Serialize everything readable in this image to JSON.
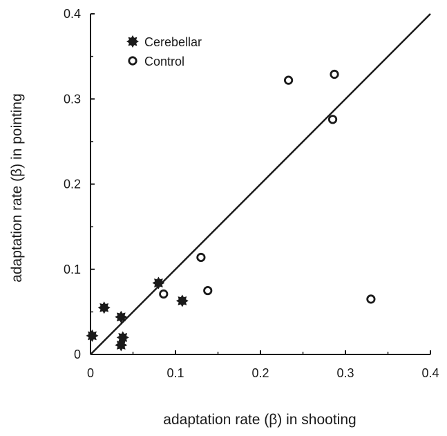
{
  "chart_data": {
    "type": "scatter",
    "title": "",
    "xlabel": "adaptation rate (β) in shooting",
    "ylabel": "adaptation rate  (β) in pointing",
    "xlim": [
      0,
      0.4
    ],
    "ylim": [
      0,
      0.4
    ],
    "x_ticks": [
      "0",
      "0.1",
      "0.2",
      "0.3",
      "0.4"
    ],
    "y_ticks": [
      "0",
      "0.1",
      "0.2",
      "0.3",
      "0.4"
    ],
    "grid": false,
    "legend_position": "top-left",
    "reference_line": {
      "type": "identity",
      "from": [
        0,
        0
      ],
      "to": [
        0.4,
        0.4
      ]
    },
    "series": [
      {
        "name": "Cerebellar",
        "marker": "filled-star",
        "color": "#1a1a1a",
        "points": [
          {
            "x": 0.002,
            "y": 0.022
          },
          {
            "x": 0.016,
            "y": 0.055
          },
          {
            "x": 0.036,
            "y": 0.044
          },
          {
            "x": 0.038,
            "y": 0.02
          },
          {
            "x": 0.036,
            "y": 0.011
          },
          {
            "x": 0.08,
            "y": 0.084
          },
          {
            "x": 0.108,
            "y": 0.063
          }
        ]
      },
      {
        "name": "Control",
        "marker": "open-circle",
        "color": "#1a1a1a",
        "points": [
          {
            "x": 0.086,
            "y": 0.071
          },
          {
            "x": 0.13,
            "y": 0.114
          },
          {
            "x": 0.138,
            "y": 0.075
          },
          {
            "x": 0.233,
            "y": 0.322
          },
          {
            "x": 0.287,
            "y": 0.329
          },
          {
            "x": 0.285,
            "y": 0.276
          },
          {
            "x": 0.33,
            "y": 0.065
          }
        ]
      }
    ]
  }
}
